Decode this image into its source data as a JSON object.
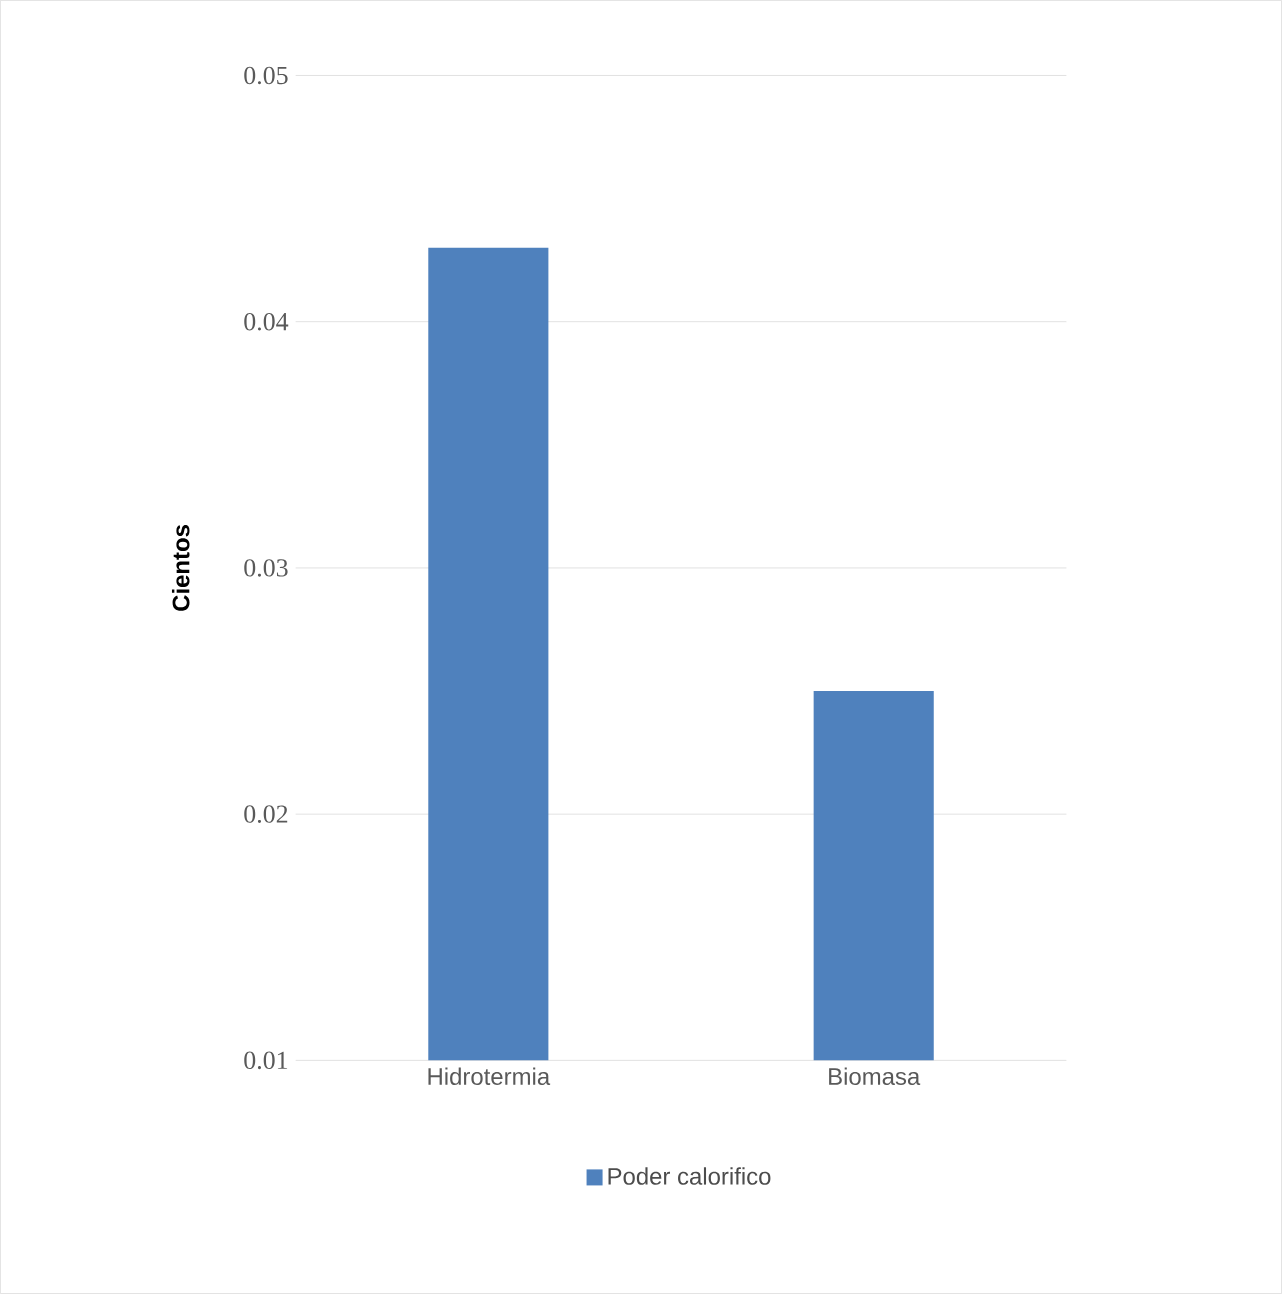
{
  "chart_data": {
    "type": "bar",
    "ylabel": "Cientos",
    "categories": [
      "Hidrotermia",
      "Biomasa"
    ],
    "series": [
      {
        "name": "Poder calorifico",
        "color": "#4f81bd",
        "values": [
          0.043,
          0.025
        ]
      }
    ],
    "ylim": [
      0.01,
      0.05
    ],
    "yticks": [
      0.01,
      0.02,
      0.03,
      0.04,
      0.05
    ],
    "grid": "y",
    "legend": "bottom"
  }
}
